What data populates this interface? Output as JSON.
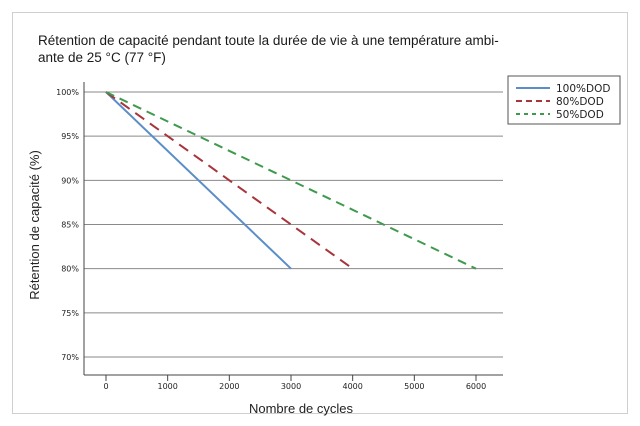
{
  "chart_data": {
    "type": "line",
    "title": "Rétention de capacité pendant toute la durée de vie à une température ambi- ante de 25 °C (77 °F)",
    "title_lines": [
      "Rétention de capacité pendant toute la durée de vie à une température ambi-",
      "ante de 25 °C (77 °F)"
    ],
    "xlabel": "Nombre de cycles",
    "ylabel": "Rétention de capacité (%)",
    "xlim": [
      -250,
      6500
    ],
    "ylim": [
      70,
      100
    ],
    "x_ticks": [
      0,
      1000,
      2000,
      3000,
      4000,
      5000,
      6000
    ],
    "x_tick_labels": [
      "0",
      "1000",
      "2000",
      "3000",
      "4000",
      "5000",
      "6000"
    ],
    "y_ticks": [
      70,
      75,
      80,
      85,
      90,
      95,
      100
    ],
    "y_tick_labels": [
      "70%",
      "75%",
      "80%",
      "85%",
      "90%",
      "95%",
      "100%"
    ],
    "grid": "horizontal",
    "legend_position": "top-right",
    "series": [
      {
        "name": "100%DOD",
        "color": "#5b8ec8",
        "style": "solid",
        "points": [
          [
            0,
            100
          ],
          [
            3000,
            80
          ]
        ]
      },
      {
        "name": "80%DOD",
        "color": "#a8343c",
        "style": "dashed",
        "points": [
          [
            0,
            100
          ],
          [
            4000,
            80
          ]
        ]
      },
      {
        "name": "50%DOD",
        "color": "#3f9a4e",
        "style": "dashed",
        "points": [
          [
            0,
            100
          ],
          [
            6000,
            80
          ]
        ]
      }
    ]
  }
}
